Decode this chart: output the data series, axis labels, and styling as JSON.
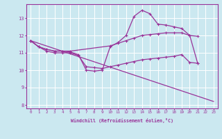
{
  "xlabel": "Windchill (Refroidissement éolien,°C)",
  "bg_color": "#cbe8f0",
  "line_color": "#993399",
  "grid_color": "#ffffff",
  "xlim": [
    -0.5,
    23.5
  ],
  "ylim": [
    7.8,
    13.8
  ],
  "yticks": [
    8,
    9,
    10,
    11,
    12,
    13
  ],
  "xticks": [
    0,
    1,
    2,
    3,
    4,
    5,
    6,
    7,
    8,
    9,
    10,
    11,
    12,
    13,
    14,
    15,
    16,
    17,
    18,
    19,
    20,
    21,
    22,
    23
  ],
  "lines": [
    {
      "x": [
        0,
        23
      ],
      "y": [
        11.7,
        8.2
      ],
      "marker": false,
      "lw": 0.9
    },
    {
      "x": [
        0,
        1,
        2,
        3,
        4,
        5,
        10,
        11,
        12,
        13,
        14,
        15,
        16,
        17,
        18,
        19,
        20,
        21
      ],
      "y": [
        11.7,
        11.35,
        11.2,
        11.1,
        11.1,
        11.1,
        11.4,
        11.55,
        11.7,
        11.85,
        12.0,
        12.05,
        12.1,
        12.15,
        12.15,
        12.15,
        12.0,
        11.95
      ],
      "marker": true,
      "lw": 0.9
    },
    {
      "x": [
        0,
        1,
        2,
        3,
        4,
        5,
        6,
        7,
        8,
        9,
        10,
        11,
        12,
        13,
        14,
        15,
        16,
        17,
        18,
        19,
        20,
        21
      ],
      "y": [
        11.7,
        11.35,
        11.2,
        11.1,
        11.1,
        11.05,
        10.9,
        10.0,
        9.95,
        10.0,
        11.35,
        11.6,
        12.0,
        13.1,
        13.45,
        13.25,
        12.65,
        12.6,
        12.5,
        12.4,
        12.0,
        10.4
      ],
      "marker": true,
      "lw": 0.9
    },
    {
      "x": [
        0,
        1,
        2,
        3,
        4,
        5,
        6,
        7,
        8,
        9,
        10,
        11,
        12,
        13,
        14,
        15,
        16,
        17,
        18,
        19,
        20,
        21
      ],
      "y": [
        11.7,
        11.35,
        11.1,
        11.0,
        11.0,
        11.0,
        10.85,
        10.2,
        10.15,
        10.1,
        10.2,
        10.3,
        10.4,
        10.5,
        10.6,
        10.65,
        10.7,
        10.75,
        10.8,
        10.9,
        10.45,
        10.4
      ],
      "marker": true,
      "lw": 0.9
    }
  ]
}
